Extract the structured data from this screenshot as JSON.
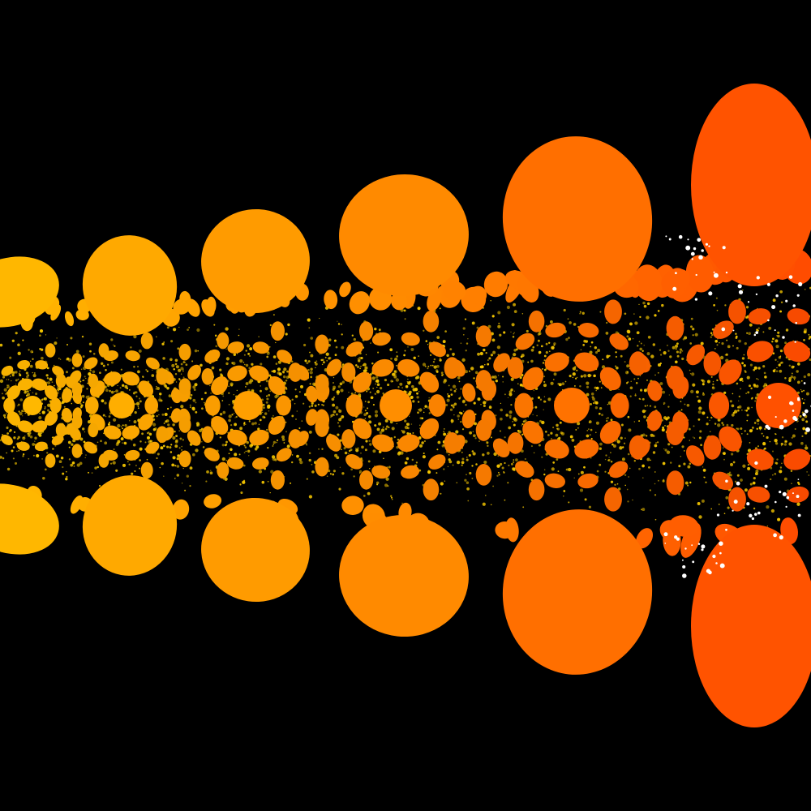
{
  "image": {
    "subject": "fractal",
    "background_color": "#000000",
    "palette": {
      "left": "#FFB800",
      "middle": "#FF8A00",
      "right": "#FF4A00",
      "filigree": "#F2C400",
      "sparkle": "#FFFFFF"
    }
  }
}
